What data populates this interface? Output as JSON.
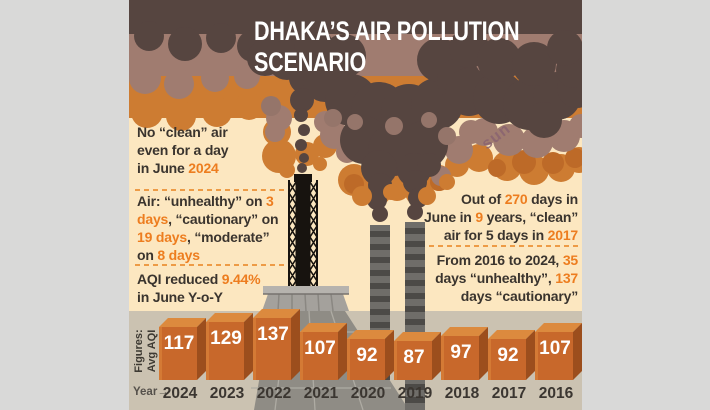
{
  "title": "DHAKA’S AIR POLLUTION\nSCENARIO",
  "watermark": "sun",
  "notes": {
    "left": [
      {
        "segments": [
          {
            "text": "No “clean” air\neven for a day\nin June "
          },
          {
            "text": "2024",
            "accent": true
          }
        ]
      },
      {
        "segments": [
          {
            "text": "Air: “unhealthy” on "
          },
          {
            "text": "3\ndays",
            "accent": true
          },
          {
            "text": ", “cautionary” on\n"
          },
          {
            "text": "19 days",
            "accent": true
          },
          {
            "text": ", “moderate”\non "
          },
          {
            "text": "8 days",
            "accent": true
          }
        ]
      },
      {
        "segments": [
          {
            "text": "AQI reduced "
          },
          {
            "text": "9.44%",
            "accent": true
          },
          {
            "text": "\nin June Y-o-Y"
          }
        ]
      }
    ],
    "right": [
      {
        "segments": [
          {
            "text": "Out of "
          },
          {
            "text": "270",
            "accent": true
          },
          {
            "text": " days in\nJune in "
          },
          {
            "text": "9",
            "accent": true
          },
          {
            "text": " years, “clean”\nair for 5 days in "
          },
          {
            "text": "2017",
            "accent": true
          }
        ]
      },
      {
        "segments": [
          {
            "text": "From 2016 to 2024, "
          },
          {
            "text": "35",
            "accent": true
          },
          {
            "text": "\ndays “unhealthy”, "
          },
          {
            "text": "137",
            "accent": true
          },
          {
            "text": "\ndays “cautionary”"
          }
        ]
      }
    ]
  },
  "axis": {
    "y_label_lines": [
      "Figures:",
      "Avg AQI"
    ],
    "x_label": "Year→"
  },
  "chart_data": {
    "type": "bar",
    "title": "Dhaka average AQI by year",
    "categories": [
      "2024",
      "2023",
      "2022",
      "2021",
      "2020",
      "2019",
      "2018",
      "2017",
      "2016"
    ],
    "values": [
      117,
      129,
      137,
      107,
      92,
      87,
      97,
      92,
      107
    ],
    "xlabel": "Year",
    "ylabel": "Avg AQI",
    "ylim": [
      0,
      150
    ],
    "grid": false,
    "legend": "none"
  },
  "colors": {
    "accent": "#ed7d1f",
    "ink": "#3a342e",
    "title_text": "#ffffff",
    "canvas_cream": "#fce7c0",
    "gutter_grey": "#d9d9d8",
    "smoke_dark": "#564540",
    "smoke_mauve": "#a07c70",
    "smoke_orange": "#cd7c32",
    "bar_front": "#c8682b",
    "bar_top": "#dc8a3e",
    "bar_side": "#9c4e1d",
    "bar_value": "#ffffff",
    "year_label": "#3b3631"
  }
}
